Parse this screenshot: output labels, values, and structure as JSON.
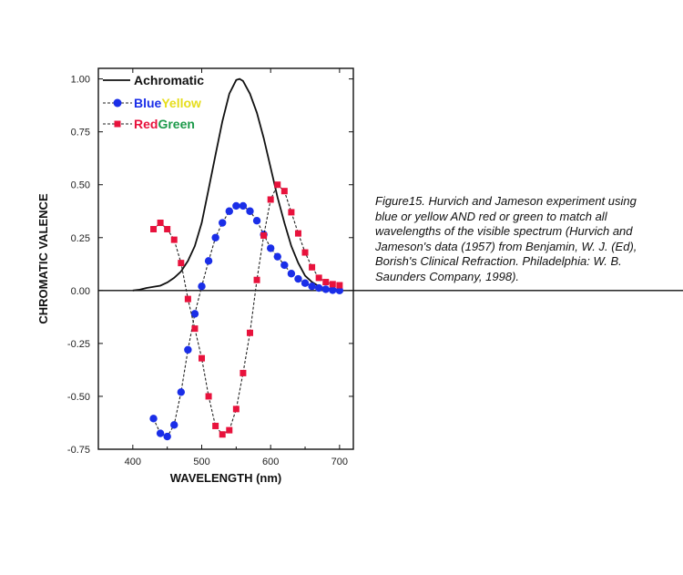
{
  "caption": "Figure15. Hurvich and Jameson experiment using blue or yellow AND red or green to match all wavelengths of the visible spectrum (Hurvich and Jameson's data (1957) from Benjamin, W. J. (Ed), Borish's Clinical Refraction. Philadelphia: W. B. Saunders Company, 1998).",
  "chart_data": {
    "type": "line",
    "title": "",
    "xlabel": "WAVELENGTH (nm)",
    "ylabel": "CHROMATIC VALENCE",
    "xlim": [
      350,
      720
    ],
    "ylim": [
      -0.75,
      1.05
    ],
    "x_ticks": [
      400,
      500,
      600,
      700
    ],
    "x_tick_labels": [
      "400",
      "500",
      "600",
      "700"
    ],
    "y_ticks": [
      1.0,
      0.75,
      0.5,
      0.25,
      0.0,
      -0.25,
      -0.5,
      -0.75
    ],
    "y_tick_labels": [
      "1.00",
      "0.75",
      "0.50",
      "0.25",
      "0.00",
      "-0.25",
      "-0.50",
      "-0.75"
    ],
    "grid": false,
    "zero_line": true,
    "legend_position": "top-left",
    "legend": [
      {
        "label_parts": [
          {
            "text": "Achromatic",
            "color": "#111111"
          }
        ],
        "marker": "none"
      },
      {
        "label_parts": [
          {
            "text": "Blue",
            "color": "#1a2ee8"
          },
          {
            "text": "Yellow",
            "color": "#e6dd1c"
          }
        ],
        "marker": "circle",
        "marker_color": "#1a2ee8"
      },
      {
        "label_parts": [
          {
            "text": "Red",
            "color": "#e8123c"
          },
          {
            "text": "Green",
            "color": "#1c9a4a"
          }
        ],
        "marker": "square",
        "marker_color": "#e8123c"
      }
    ],
    "series": [
      {
        "name": "Achromatic",
        "color": "#111111",
        "marker": "none",
        "x": [
          400,
          410,
          420,
          430,
          440,
          450,
          460,
          470,
          480,
          490,
          500,
          510,
          520,
          530,
          540,
          550,
          555,
          560,
          570,
          580,
          590,
          600,
          610,
          620,
          630,
          640,
          650,
          660,
          670,
          680,
          690,
          700
        ],
        "y": [
          0.0,
          0.004,
          0.012,
          0.018,
          0.023,
          0.038,
          0.06,
          0.09,
          0.14,
          0.21,
          0.32,
          0.48,
          0.64,
          0.8,
          0.93,
          0.995,
          1.0,
          0.99,
          0.93,
          0.84,
          0.72,
          0.58,
          0.44,
          0.32,
          0.21,
          0.13,
          0.07,
          0.04,
          0.02,
          0.01,
          0.005,
          0.002
        ]
      },
      {
        "name": "BlueYellow",
        "color": "#1a2ee8",
        "marker": "circle",
        "x": [
          430,
          440,
          450,
          460,
          470,
          480,
          490,
          500,
          510,
          520,
          530,
          540,
          550,
          560,
          570,
          580,
          590,
          600,
          610,
          620,
          630,
          640,
          650,
          660,
          670,
          680,
          690,
          700
        ],
        "y": [
          -0.605,
          -0.675,
          -0.69,
          -0.635,
          -0.48,
          -0.28,
          -0.11,
          0.02,
          0.14,
          0.25,
          0.32,
          0.375,
          0.4,
          0.4,
          0.375,
          0.33,
          0.265,
          0.2,
          0.16,
          0.12,
          0.08,
          0.055,
          0.035,
          0.02,
          0.012,
          0.006,
          0.002,
          0.0
        ]
      },
      {
        "name": "RedGreen",
        "color": "#e8123c",
        "marker": "square",
        "x": [
          430,
          440,
          450,
          460,
          470,
          480,
          490,
          500,
          510,
          520,
          530,
          540,
          550,
          560,
          570,
          580,
          590,
          600,
          610,
          620,
          630,
          640,
          650,
          660,
          670,
          680,
          690,
          700
        ],
        "y": [
          0.29,
          0.32,
          0.29,
          0.24,
          0.13,
          -0.04,
          -0.18,
          -0.32,
          -0.5,
          -0.64,
          -0.68,
          -0.66,
          -0.56,
          -0.39,
          -0.2,
          0.05,
          0.26,
          0.43,
          0.5,
          0.47,
          0.37,
          0.27,
          0.18,
          0.11,
          0.06,
          0.04,
          0.03,
          0.025
        ]
      }
    ]
  }
}
